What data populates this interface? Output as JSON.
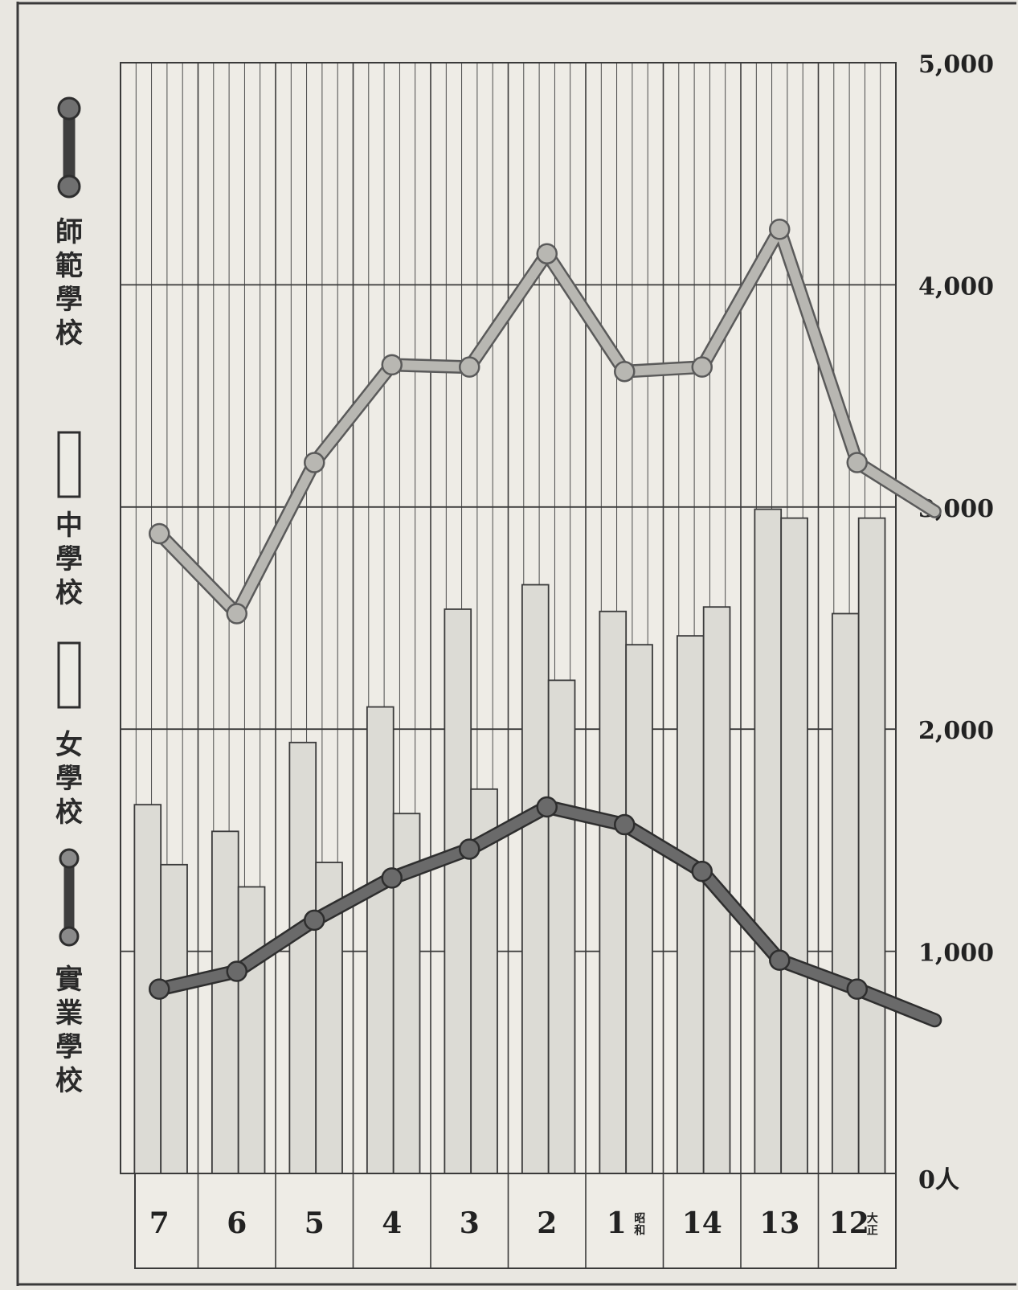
{
  "legend": {
    "normal_school": "師範學校",
    "middle_school": "中學校",
    "girls_school": "女學校",
    "vocational_school": "實業學校"
  },
  "colors": {
    "background": "#e9e7e1",
    "grid": "#3a3a3a",
    "bar_fill": "#dcdbd5",
    "normal_line": "#b8b7b2",
    "normal_line_edge": "#5a5a5a",
    "vocational_line": "#6a6a6a",
    "vocational_line_edge": "#2e2e2e"
  },
  "chart_data": {
    "type": "bar",
    "categories": [
      "7",
      "6",
      "5",
      "4",
      "3",
      "2",
      "1",
      "14",
      "13",
      "12"
    ],
    "category_notes": {
      "1": "昭和",
      "12": "大正"
    },
    "yaxis": {
      "ticks": [
        0,
        1000,
        2000,
        3000,
        4000,
        5000
      ],
      "tick_labels": [
        "0人",
        "1,000",
        "2,000",
        "3,000",
        "4,000",
        "5,000"
      ],
      "ylim": [
        0,
        5000
      ]
    },
    "series": [
      {
        "name": "中學校",
        "kind": "bar",
        "values": [
          1660,
          1540,
          1940,
          2100,
          2540,
          2650,
          2530,
          2420,
          2990,
          2520
        ]
      },
      {
        "name": "女學校",
        "kind": "bar",
        "values": [
          1390,
          1290,
          1400,
          1620,
          1730,
          2220,
          2380,
          2550,
          2950,
          2950
        ]
      },
      {
        "name": "師範學校",
        "kind": "line",
        "points": [
          [
            0.5,
            2880
          ],
          [
            1.5,
            2520
          ],
          [
            2.5,
            3200
          ],
          [
            3.5,
            3640
          ],
          [
            4.5,
            3630
          ],
          [
            5.5,
            4140
          ],
          [
            6.5,
            3610
          ],
          [
            7.5,
            3630
          ],
          [
            8.5,
            4250
          ],
          [
            9.5,
            3200
          ],
          [
            10.5,
            2980
          ]
        ]
      },
      {
        "name": "實業學校",
        "kind": "line",
        "points": [
          [
            0.5,
            830
          ],
          [
            1.5,
            910
          ],
          [
            2.5,
            1140
          ],
          [
            3.5,
            1330
          ],
          [
            4.5,
            1460
          ],
          [
            5.5,
            1650
          ],
          [
            6.5,
            1570
          ],
          [
            7.5,
            1360
          ],
          [
            8.5,
            960
          ],
          [
            9.5,
            830
          ],
          [
            10.5,
            690
          ]
        ]
      }
    ]
  }
}
